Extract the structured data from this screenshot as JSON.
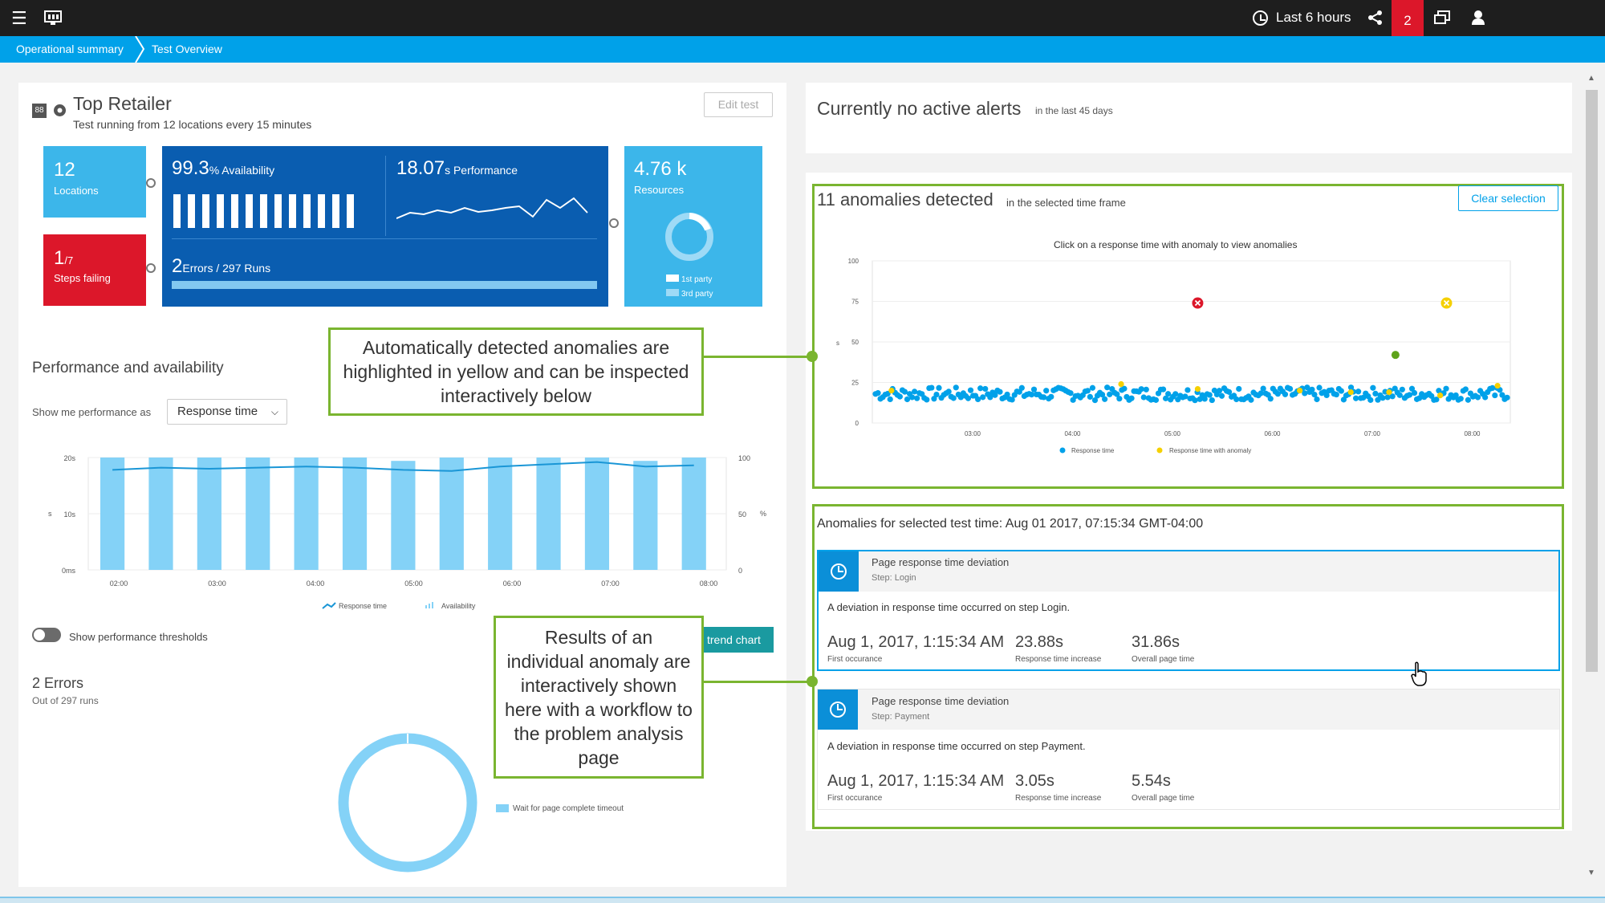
{
  "topbar": {
    "menu_icon": "hamburger-icon",
    "app_icon": "monitor-icon",
    "timeframe_label": "Last 6 hours",
    "share_icon": "share-icon",
    "problems_count": "2",
    "windows_icon": "windows-icon",
    "user_icon": "user-icon"
  },
  "breadcrumb": [
    "Operational summary",
    "Test Overview"
  ],
  "test": {
    "badge": "88",
    "name": "Top Retailer",
    "subtitle": "Test running from 12 locations every 15 minutes",
    "edit_label": "Edit test"
  },
  "tiles": {
    "locations_value": "12",
    "locations_label": "Locations",
    "steps_value": "1",
    "steps_total": "/7",
    "steps_label": "Steps failing",
    "availability_value": "99.3",
    "availability_unit": "% Availability",
    "performance_value": "18.07",
    "performance_unit": "s Performance",
    "errors_value": "2",
    "errors_label": "Errors / 297 Runs",
    "resources_value": "4.76 k",
    "resources_label": "Resources",
    "legend_1st": "1st party",
    "legend_3rd": "3rd party"
  },
  "alerts": {
    "title": "Currently no active alerts",
    "subtitle": "in the last 45 days"
  },
  "perf": {
    "heading": "Performance and availability",
    "show_label": "Show me performance as",
    "dropdown_value": "Response time",
    "toggle_label": "Show performance thresholds",
    "trend_button": "trend chart"
  },
  "errors_section": {
    "title": "2 Errors",
    "subtitle": "Out of 297 runs",
    "legend": "Wait for page complete timeout"
  },
  "anomalies": {
    "title": "11 anomalies detected",
    "subtitle": "in the selected time frame",
    "clear_button": "Clear selection",
    "hint": "Click on a response time with anomaly to view anomalies",
    "selected_title": "Anomalies for selected test time: Aug 01 2017, 07:15:34 GMT-04:00",
    "cards": [
      {
        "title": "Page response time deviation",
        "step": "Step: Login",
        "description": "A deviation in response time occurred on step Login.",
        "first": "Aug 1, 2017, 1:15:34 AM",
        "first_label": "First occurance",
        "increase": "23.88s",
        "increase_label": "Response time increase",
        "overall": "31.86s",
        "overall_label": "Overall page time"
      },
      {
        "title": "Page response time deviation",
        "step": "Step: Payment",
        "description": "A deviation in response time occurred on step Payment.",
        "first": "Aug 1, 2017, 1:15:34 AM",
        "first_label": "First occurance",
        "increase": "3.05s",
        "increase_label": "Response time increase",
        "overall": "5.54s",
        "overall_label": "Overall page time"
      }
    ]
  },
  "callouts": {
    "top": "Automatically detected anomalies are highlighted in yellow and can be inspected interactively below",
    "bottom": "Results of an individual anomaly are interactively shown here with a workflow to the problem analysis page"
  },
  "chart_data": [
    {
      "type": "bar",
      "title": "",
      "categories": [
        "1",
        "2",
        "3",
        "4",
        "5",
        "6",
        "7",
        "8",
        "9",
        "10",
        "11",
        "12",
        "13"
      ],
      "x_tick_labels": [
        "02:00",
        "03:00",
        "04:00",
        "05:00",
        "06:00",
        "07:00",
        "08:00"
      ],
      "left_y_ticks": [
        "20s",
        "10s",
        "0ms"
      ],
      "right_y_ticks": [
        "100",
        "50",
        "0"
      ],
      "left_ylabel": "s",
      "right_ylabel": "%",
      "ylim_left": [
        0,
        20
      ],
      "ylim_right": [
        0,
        100
      ],
      "series": [
        {
          "name": "Availability",
          "type": "bar",
          "values": [
            100,
            100,
            100,
            100,
            100,
            100,
            97,
            100,
            100,
            100,
            100,
            97,
            100
          ]
        },
        {
          "name": "Response time",
          "type": "line",
          "values": [
            17.8,
            18.2,
            18.0,
            18.2,
            18.4,
            18.2,
            17.8,
            17.6,
            18.4,
            18.8,
            19.2,
            18.4,
            18.6
          ]
        }
      ],
      "legend": [
        "Response time",
        "Availability"
      ]
    },
    {
      "type": "scatter",
      "title": "",
      "x_tick_labels": [
        "03:00",
        "04:00",
        "05:00",
        "06:00",
        "07:00",
        "08:00"
      ],
      "y_ticks": [
        "100",
        "75",
        "50",
        "25",
        "0"
      ],
      "ylabel": "s",
      "ylim": [
        0,
        100
      ],
      "series": [
        {
          "name": "Response time",
          "color": "#00a1e9",
          "y_band": [
            14,
            22
          ]
        },
        {
          "name": "Response time with anomaly",
          "color": "#f5d000",
          "points": [
            [
              0.03,
              20
            ],
            [
              0.39,
              24
            ],
            [
              0.51,
              21
            ],
            [
              0.67,
              20
            ],
            [
              0.75,
              19
            ],
            [
              0.81,
              19
            ],
            [
              0.89,
              17
            ],
            [
              0.98,
              23
            ]
          ]
        }
      ],
      "markers": [
        {
          "kind": "error",
          "x_frac": 0.51,
          "y": 74,
          "color": "#dc172a"
        },
        {
          "kind": "warning",
          "x_frac": 0.9,
          "y": 74,
          "color": "#f5d000"
        },
        {
          "kind": "point",
          "x_frac": 0.82,
          "y": 42,
          "color": "#5ea31a"
        }
      ],
      "legend": [
        "Response time",
        "Response time with anomaly"
      ]
    },
    {
      "type": "pie",
      "title": "",
      "slices": [
        {
          "label": "Wait for page complete timeout",
          "value": 100
        }
      ]
    }
  ]
}
